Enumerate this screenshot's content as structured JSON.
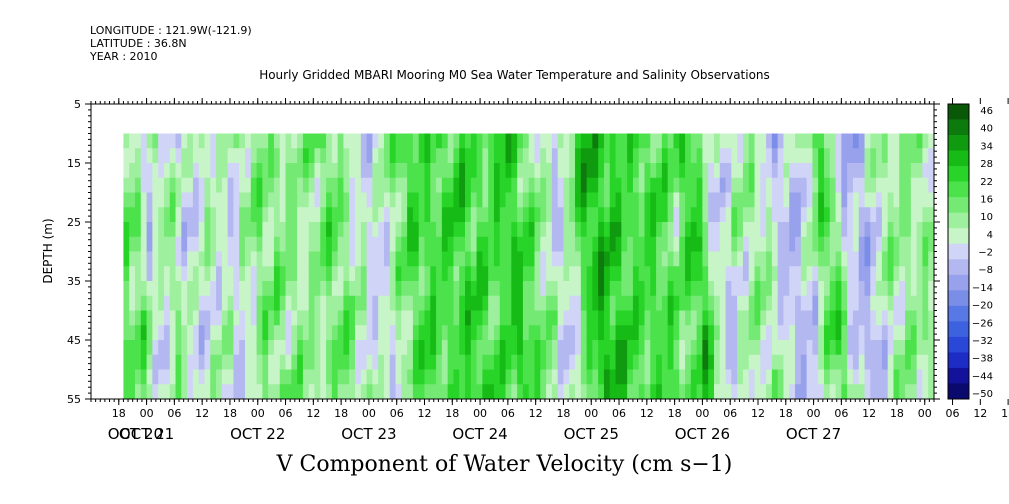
{
  "meta": {
    "longitude": "LONGITUDE : 121.9W(-121.9)",
    "latitude": "LATITUDE : 36.8N",
    "year": "YEAR : 2010"
  },
  "chart_data": {
    "type": "heatmap",
    "title": "Hourly Gridded MBARI Mooring M0 Sea Water Temperature and Salinity Observations",
    "bottom_title": "V Component of Water Velocity (cm s−1)",
    "ylabel": "DEPTH (m)",
    "xlabel": "",
    "ylim": [
      55,
      5
    ],
    "y_ticks": [
      "5",
      "15",
      "25",
      "35",
      "45",
      "55"
    ],
    "x_range_hours": [
      "2010-10-20T12:00",
      "2010-10-28T02:00"
    ],
    "data_start": "2010-10-20T19:00",
    "data_depth_range": [
      10,
      55
    ],
    "hour_ticks": [
      "18",
      "00",
      "06",
      "12",
      "18",
      "00",
      "06",
      "12",
      "18",
      "00",
      "06",
      "12",
      "18",
      "00",
      "06",
      "12",
      "18",
      "00",
      "06",
      "12",
      "18",
      "00",
      "06",
      "12",
      "18",
      "00",
      "06",
      "12",
      "18",
      "00",
      "06",
      "12",
      "18",
      "00",
      "06",
      "12"
    ],
    "date_labels": [
      "OCT 20",
      "OCT 21",
      "OCT 22",
      "OCT 23",
      "OCT 24",
      "OCT 25",
      "OCT 26",
      "OCT 27"
    ],
    "colorbar": {
      "labels": [
        "46",
        "40",
        "34",
        "28",
        "22",
        "16",
        "10",
        "4",
        "−2",
        "−8",
        "−14",
        "−20",
        "−26",
        "−32",
        "−38",
        "−44",
        "−50"
      ],
      "min": -50,
      "max": 46,
      "colors": [
        "#0a0a6e",
        "#12129a",
        "#1c2cc4",
        "#2a48d8",
        "#3c62e0",
        "#5878e6",
        "#7a8ee8",
        "#98a2ec",
        "#b4b8f0",
        "#d0d4f6",
        "#c8f5c8",
        "#9ef09e",
        "#74ea74",
        "#4ce24c",
        "#28d428",
        "#16bb16",
        "#109a10",
        "#0c7a0c",
        "#085808"
      ]
    },
    "field_profile": [
      {
        "day": 20.8,
        "v": 14
      },
      {
        "day": 20.95,
        "v": -3
      },
      {
        "day": 21.1,
        "v": 10
      },
      {
        "day": 21.3,
        "v": -2
      },
      {
        "day": 21.5,
        "v": 6
      },
      {
        "day": 21.7,
        "v": -1
      },
      {
        "day": 21.9,
        "v": 12
      },
      {
        "day": 22.15,
        "v": 10
      },
      {
        "day": 22.4,
        "v": 8
      },
      {
        "day": 22.6,
        "v": 16
      },
      {
        "day": 22.8,
        "v": 4
      },
      {
        "day": 23.0,
        "v": -2
      },
      {
        "day": 23.3,
        "v": 20
      },
      {
        "day": 23.55,
        "v": 18
      },
      {
        "day": 23.8,
        "v": 22
      },
      {
        "day": 24.0,
        "v": 16
      },
      {
        "day": 24.2,
        "v": 24
      },
      {
        "day": 24.45,
        "v": 10
      },
      {
        "day": 24.65,
        "v": -4
      },
      {
        "day": 24.9,
        "v": 28
      },
      {
        "day": 25.1,
        "v": 24
      },
      {
        "day": 25.3,
        "v": 18
      },
      {
        "day": 25.5,
        "v": 20
      },
      {
        "day": 25.7,
        "v": 12
      },
      {
        "day": 25.85,
        "v": 26
      },
      {
        "day": 26.05,
        "v": -4
      },
      {
        "day": 26.25,
        "v": 6
      },
      {
        "day": 26.45,
        "v": 8
      },
      {
        "day": 26.65,
        "v": -6
      },
      {
        "day": 26.85,
        "v": -2
      },
      {
        "day": 27.05,
        "v": 22
      },
      {
        "day": 27.2,
        "v": -3
      },
      {
        "day": 27.4,
        "v": -8
      },
      {
        "day": 27.55,
        "v": 8
      }
    ]
  }
}
